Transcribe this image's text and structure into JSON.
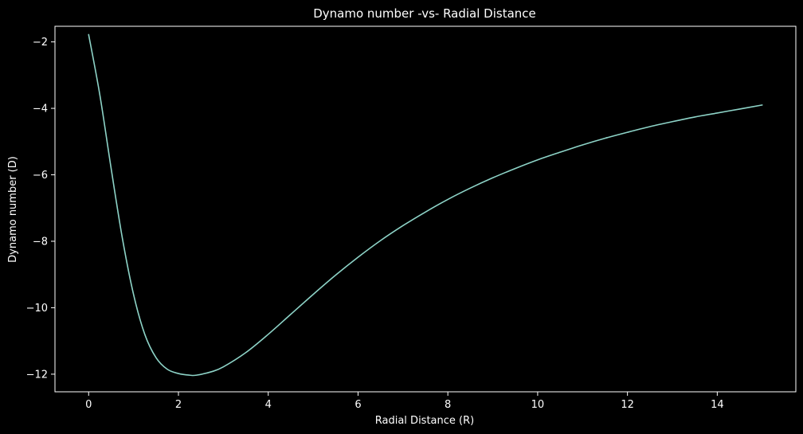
{
  "chart_data": {
    "type": "line",
    "title": "Dynamo number -vs- Radial Distance",
    "xlabel": "Radial Distance (R)",
    "ylabel": "Dynamo number (D)",
    "xlim": [
      -0.75,
      15.75
    ],
    "ylim": [
      -12.53,
      -1.53
    ],
    "xticks": [
      0,
      2,
      4,
      6,
      8,
      10,
      12,
      14
    ],
    "xtick_labels": [
      "0",
      "2",
      "4",
      "6",
      "8",
      "10",
      "12",
      "14"
    ],
    "yticks": [
      -2,
      -4,
      -6,
      -8,
      -10,
      -12
    ],
    "ytick_labels": [
      "−2",
      "−4",
      "−6",
      "−8",
      "−10",
      "−12"
    ],
    "grid": false,
    "colors": {
      "background": "#000000",
      "axes": "#ffffff",
      "line": "#8dd3c7"
    },
    "series": [
      {
        "x": [
          0,
          0.25,
          0.5,
          0.75,
          1,
          1.25,
          1.5,
          1.75,
          2,
          2.25,
          2.4,
          2.75,
          3,
          3.5,
          4,
          4.5,
          5,
          5.5,
          6,
          6.5,
          7,
          7.5,
          8,
          8.5,
          9,
          9.5,
          10,
          10.5,
          11,
          11.5,
          12,
          12.5,
          13,
          13.5,
          14,
          14.5,
          15
        ],
        "values": [
          -1.78,
          -3.6,
          -5.8,
          -7.9,
          -9.6,
          -10.8,
          -11.5,
          -11.85,
          -11.98,
          -12.03,
          -12.03,
          -11.92,
          -11.78,
          -11.35,
          -10.8,
          -10.2,
          -9.6,
          -9.02,
          -8.48,
          -7.98,
          -7.53,
          -7.12,
          -6.74,
          -6.4,
          -6.09,
          -5.81,
          -5.55,
          -5.32,
          -5.1,
          -4.9,
          -4.72,
          -4.55,
          -4.4,
          -4.26,
          -4.14,
          -4.02,
          -3.9
        ]
      }
    ]
  }
}
